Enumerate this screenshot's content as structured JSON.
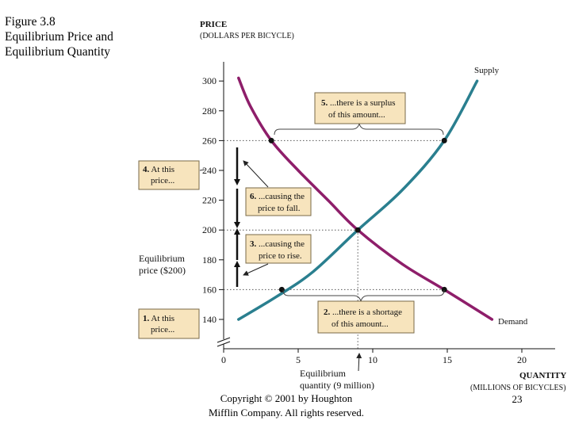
{
  "slide": {
    "title_lines": [
      "Figure 3.8",
      "Equilibrium Price and",
      "Equilibrium Quantity"
    ],
    "footer_lines": [
      "Copyright © 2001 by Houghton",
      "Mifflin Company. All rights reserved."
    ],
    "page_number": "23"
  },
  "chart_data": {
    "type": "line",
    "title": "Equilibrium Price and Equilibrium Quantity",
    "ylabel_lines": [
      "PRICE",
      "(DOLLARS PER BICYCLE)"
    ],
    "xlabel_lines": [
      "QUANTITY",
      "(MILLIONS OF BICYCLES)"
    ],
    "x_ticks": [
      0,
      5,
      10,
      15,
      20
    ],
    "y_ticks": [
      140,
      160,
      180,
      200,
      220,
      240,
      260,
      280,
      300
    ],
    "xlim": [
      0,
      21.5
    ],
    "ylim": [
      125,
      310
    ],
    "series": [
      {
        "name": "Supply",
        "color": "#2a7f8f",
        "x": [
          1,
          3.5,
          6,
          9,
          12,
          14.8,
          17
        ],
        "y": [
          140,
          155,
          172,
          200,
          227,
          260,
          300
        ]
      },
      {
        "name": "Demand",
        "color": "#8e1e6a",
        "x": [
          1,
          1.8,
          3.2,
          5,
          7,
          9,
          12,
          14.8,
          18
        ],
        "y": [
          302,
          283,
          260,
          240,
          220,
          200,
          177,
          160,
          140
        ]
      }
    ],
    "points": [
      {
        "label": "demand-at-260",
        "x": 3.2,
        "y": 260
      },
      {
        "label": "supply-at-260",
        "x": 14.8,
        "y": 260
      },
      {
        "label": "equilibrium",
        "x": 9,
        "y": 200
      },
      {
        "label": "supply-at-160",
        "x": 3.9,
        "y": 160
      },
      {
        "label": "demand-at-160",
        "x": 14.8,
        "y": 160
      }
    ],
    "equilibrium": {
      "price": 200,
      "quantity": 9
    },
    "annotations": {
      "supply_label": "Supply",
      "demand_label": "Demand",
      "surplus": {
        "num": "5.",
        "lines": [
          "...there is a surplus",
          "of this amount..."
        ]
      },
      "shortage": {
        "num": "2.",
        "lines": [
          "...there is a shortage",
          "of this amount..."
        ]
      },
      "high_price": {
        "num": "4.",
        "lines": [
          "At this",
          "price..."
        ]
      },
      "low_price": {
        "num": "1.",
        "lines": [
          "At this",
          "price..."
        ]
      },
      "fall": {
        "num": "6.",
        "lines": [
          "...causing the",
          "price to fall."
        ]
      },
      "rise": {
        "num": "3.",
        "lines": [
          "...causing the",
          "price to rise."
        ]
      },
      "eq_price": [
        "Equilibrium",
        "price ($200)"
      ],
      "eq_quantity": [
        "Equilibrium",
        "quantity (9 million)"
      ]
    }
  }
}
